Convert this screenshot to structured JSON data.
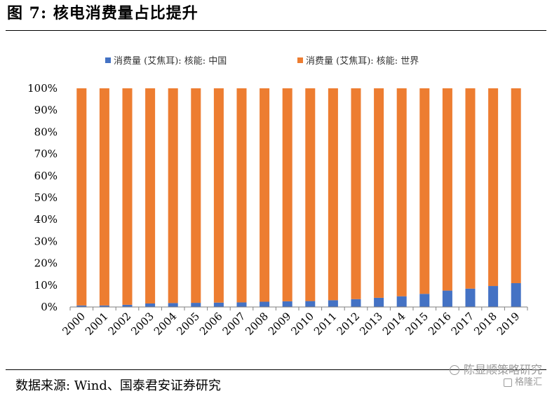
{
  "header": {
    "title": "图 7:  核电消费量占比提升"
  },
  "footer": {
    "source": "数据来源:  Wind、国泰君安证券研究"
  },
  "watermark": {
    "line1": "陈显顺策略研究",
    "line2": "格隆汇"
  },
  "colors": {
    "china": "#4472C4",
    "world": "#ED7D31",
    "axis": "#7f7f7f",
    "text": "#000000"
  },
  "chart_data": {
    "type": "bar",
    "stacked": true,
    "percent_stacked": true,
    "title": "",
    "xlabel": "",
    "ylabel": "",
    "ylim": [
      0,
      100
    ],
    "y_ticks": [
      "0%",
      "10%",
      "20%",
      "30%",
      "40%",
      "50%",
      "60%",
      "70%",
      "80%",
      "90%",
      "100%"
    ],
    "grid": false,
    "legend_position": "top",
    "categories": [
      "2000",
      "2001",
      "2002",
      "2003",
      "2004",
      "2005",
      "2006",
      "2007",
      "2008",
      "2009",
      "2010",
      "2011",
      "2012",
      "2013",
      "2014",
      "2015",
      "2016",
      "2017",
      "2018",
      "2019"
    ],
    "series": [
      {
        "name": "消费量 (艾焦耳): 核能: 中国",
        "color": "#4472C4",
        "values": [
          0.7,
          0.7,
          1.0,
          1.6,
          1.8,
          1.9,
          2.0,
          2.1,
          2.4,
          2.6,
          2.7,
          3.1,
          3.6,
          4.2,
          4.9,
          6.0,
          7.5,
          8.4,
          9.6,
          10.9
        ]
      },
      {
        "name": "消费量 (艾焦耳): 核能: 世界",
        "color": "#ED7D31",
        "values": [
          99.3,
          99.3,
          99.0,
          98.4,
          98.2,
          98.1,
          98.0,
          97.9,
          97.6,
          97.4,
          97.3,
          96.9,
          96.4,
          95.8,
          95.1,
          94.0,
          92.5,
          91.6,
          90.4,
          89.1
        ]
      }
    ]
  }
}
